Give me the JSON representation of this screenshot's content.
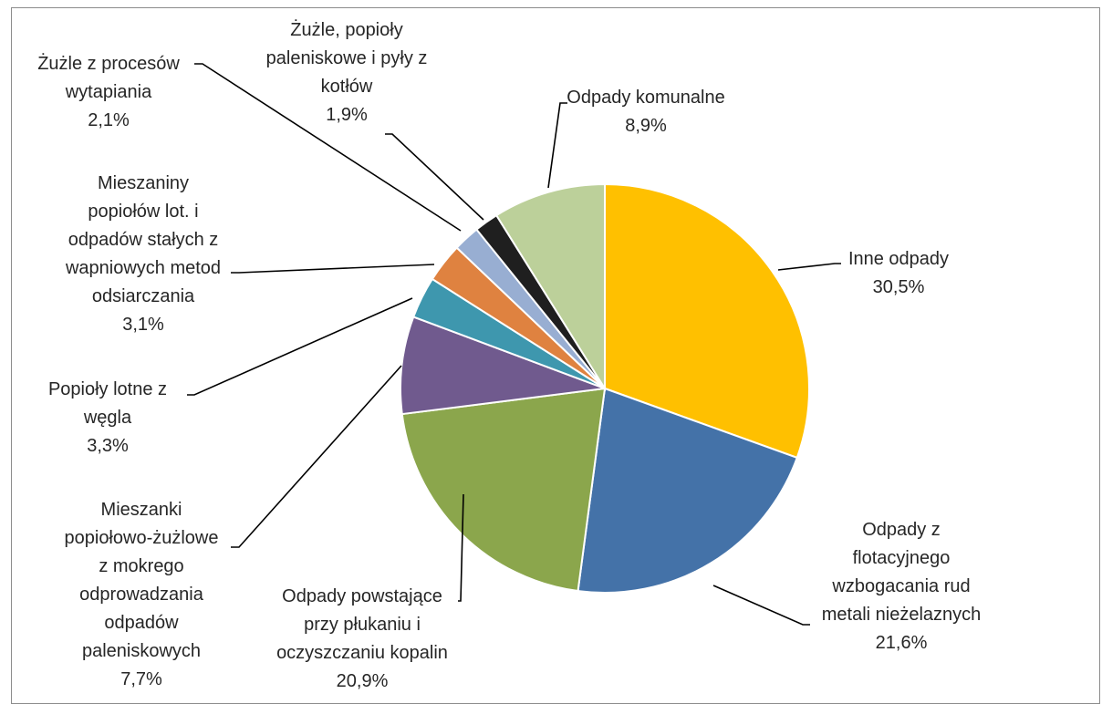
{
  "chart_data": {
    "type": "pie",
    "title": "",
    "start_angle_deg": 0,
    "direction": "clockwise",
    "legend": "none",
    "slices": [
      {
        "label": [
          "Inne odpady"
        ],
        "value": 30.5,
        "value_label": "30,5%",
        "color": "#FFC000"
      },
      {
        "label": [
          "Odpady z",
          "flotacyjnego",
          "wzbogacania rud",
          "metali nieżelaznych"
        ],
        "value": 21.6,
        "value_label": "21,6%",
        "color": "#4472A8"
      },
      {
        "label": [
          "Odpady powstające",
          "przy płukaniu i",
          "oczyszczaniu kopalin"
        ],
        "value": 20.9,
        "value_label": "20,9%",
        "color": "#8BA64C"
      },
      {
        "label": [
          "Mieszanki",
          "popiołowo-żużlowe",
          "z mokrego",
          "odprowadzania",
          "odpadów",
          "paleniskowych"
        ],
        "value": 7.7,
        "value_label": "7,7%",
        "color": "#705A8E"
      },
      {
        "label": [
          "Popioły lotne z",
          "węgla"
        ],
        "value": 3.3,
        "value_label": "3,3%",
        "color": "#3E97AE"
      },
      {
        "label": [
          "Mieszaniny",
          "popiołów lot. i",
          "odpadów stałych z",
          "wapniowych metod",
          "odsiarczania"
        ],
        "value": 3.1,
        "value_label": "3,1%",
        "color": "#DF8240"
      },
      {
        "label": [
          "Żużle z procesów",
          "wytapiania"
        ],
        "value": 2.1,
        "value_label": "2,1%",
        "color": "#98AED2"
      },
      {
        "label": [
          "Żużle, popioły",
          "paleniskowe i pyły z",
          "kotłów"
        ],
        "value": 1.9,
        "value_label": "1,9%",
        "color": "#1F1F1F"
      },
      {
        "label": [
          "Odpady komunalne"
        ],
        "value": 8.9,
        "value_label": "8,9%",
        "color": "#BCD09A"
      }
    ]
  }
}
